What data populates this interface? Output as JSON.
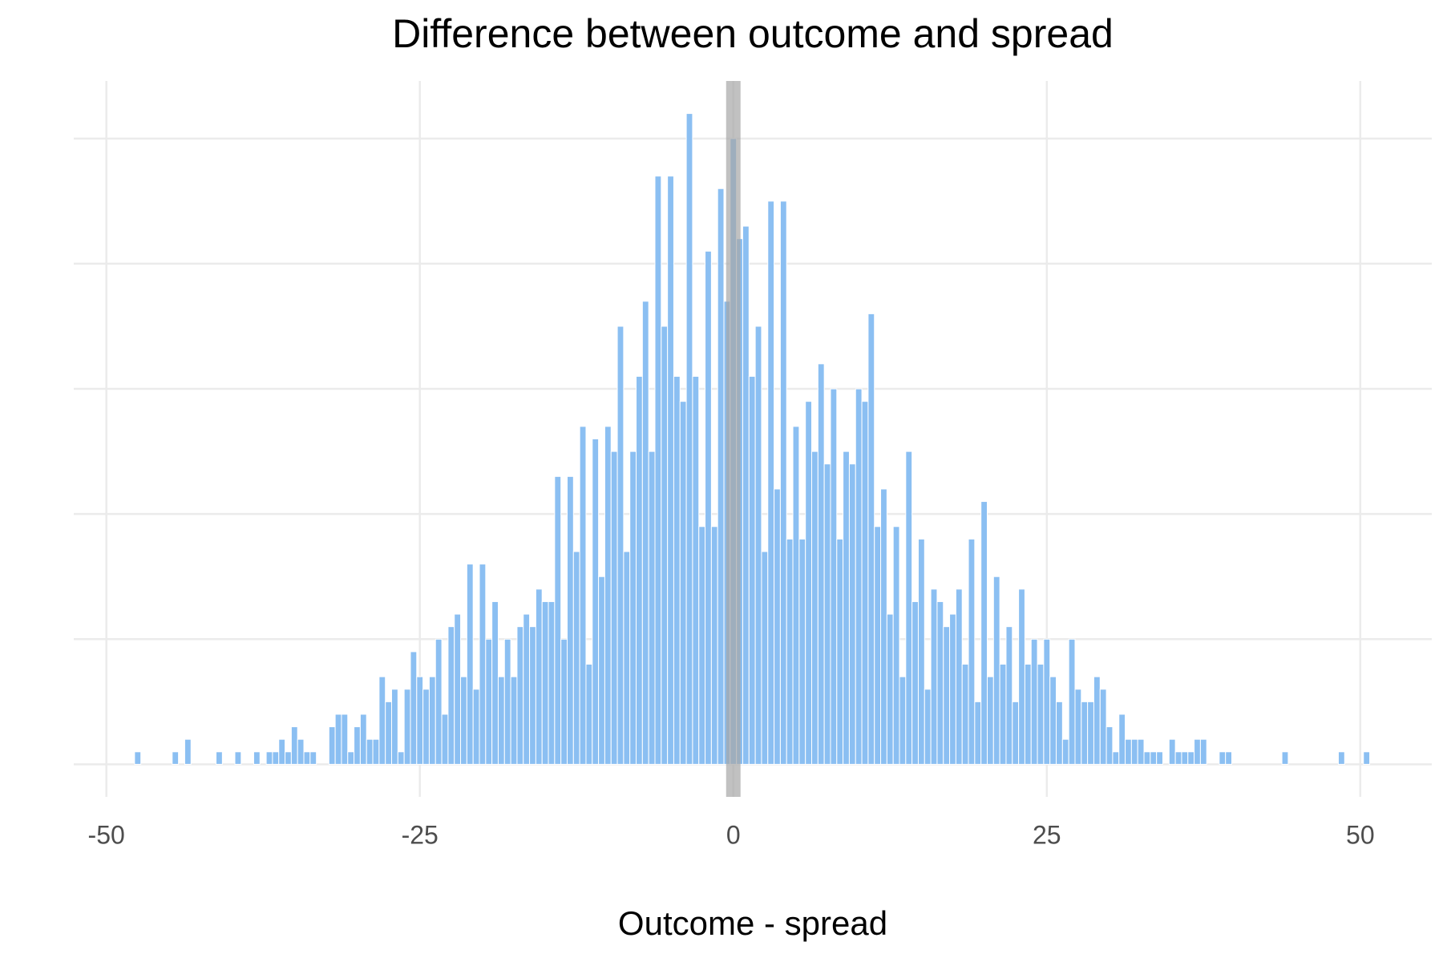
{
  "chart_data": {
    "type": "histogram",
    "title": "Difference between outcome and spread",
    "x_label": "Outcome - spread",
    "bins": [
      -47.75,
      -47.25,
      -46.75,
      -46.25,
      -45.75,
      -45.25,
      -44.75,
      -44.25,
      -43.75,
      -43.25,
      -42.75,
      -42.25,
      -41.75,
      -41.25,
      -40.75,
      -40.25,
      -39.75,
      -39.25,
      -38.75,
      -38.25,
      -37.75,
      -37.25,
      -36.75,
      -36.25,
      -35.75,
      -35.25,
      -34.75,
      -34.25,
      -33.75,
      -33.25,
      -32.75,
      -32.25,
      -31.75,
      -31.25,
      -30.75,
      -30.25,
      -29.75,
      -29.25,
      -28.75,
      -28.25,
      -27.75,
      -27.25,
      -26.75,
      -26.25,
      -25.75,
      -25.25,
      -24.75,
      -24.25,
      -23.75,
      -23.25,
      -22.75,
      -22.25,
      -21.75,
      -21.25,
      -20.75,
      -20.25,
      -19.75,
      -19.25,
      -18.75,
      -18.25,
      -17.75,
      -17.25,
      -16.75,
      -16.25,
      -15.75,
      -15.25,
      -14.75,
      -14.25,
      -13.75,
      -13.25,
      -12.75,
      -12.25,
      -11.75,
      -11.25,
      -10.75,
      -10.25,
      -9.75,
      -9.25,
      -8.75,
      -8.25,
      -7.75,
      -7.25,
      -6.75,
      -6.25,
      -5.75,
      -5.25,
      -4.75,
      -4.25,
      -3.75,
      -3.25,
      -2.75,
      -2.25,
      -1.75,
      -1.25,
      -0.75,
      -0.25,
      0.25,
      0.75,
      1.25,
      1.75,
      2.25,
      2.75,
      3.25,
      3.75,
      4.25,
      4.75,
      5.25,
      5.75,
      6.25,
      6.75,
      7.25,
      7.75,
      8.25,
      8.75,
      9.25,
      9.75,
      10.25,
      10.75,
      11.25,
      11.75,
      12.25,
      12.75,
      13.25,
      13.75,
      14.25,
      14.75,
      15.25,
      15.75,
      16.25,
      16.75,
      17.25,
      17.75,
      18.25,
      18.75,
      19.25,
      19.75,
      20.25,
      20.75,
      21.25,
      21.75,
      22.25,
      22.75,
      23.25,
      23.75,
      24.25,
      24.75,
      25.25,
      25.75,
      26.25,
      26.75,
      27.25,
      27.75,
      28.25,
      28.75,
      29.25,
      29.75,
      30.25,
      30.75,
      31.25,
      31.75,
      32.25,
      32.75,
      33.25,
      33.75,
      34.25,
      34.75,
      35.25,
      35.75,
      36.25,
      36.75,
      37.25,
      37.75,
      38.25,
      38.75,
      39.25,
      39.75,
      40.25,
      40.75,
      41.25,
      41.75,
      42.25,
      42.75,
      43.25,
      43.75,
      44.25,
      44.75,
      45.25,
      45.75,
      46.25,
      46.75,
      47.25,
      47.75,
      48.25,
      48.75,
      49.25,
      49.75,
      50.25,
      50.75
    ],
    "values": [
      1,
      0,
      0,
      0,
      0,
      0,
      1,
      0,
      2,
      0,
      0,
      0,
      0,
      1,
      0,
      0,
      1,
      0,
      0,
      1,
      0,
      1,
      1,
      2,
      1,
      3,
      2,
      1,
      1,
      0,
      0,
      3,
      4,
      4,
      1,
      3,
      4,
      2,
      2,
      7,
      5,
      6,
      1,
      6,
      9,
      7,
      6,
      7,
      10,
      4,
      11,
      12,
      7,
      16,
      6,
      16,
      10,
      13,
      7,
      10,
      7,
      11,
      12,
      11,
      14,
      13,
      13,
      23,
      10,
      23,
      17,
      27,
      8,
      26,
      15,
      27,
      25,
      35,
      17,
      25,
      31,
      37,
      25,
      47,
      35,
      47,
      31,
      29,
      52,
      31,
      19,
      41,
      19,
      46,
      37,
      50,
      42,
      43,
      31,
      35,
      17,
      45,
      22,
      45,
      18,
      27,
      18,
      29,
      25,
      32,
      24,
      30,
      18,
      25,
      24,
      30,
      29,
      36,
      19,
      22,
      12,
      19,
      7,
      25,
      13,
      18,
      6,
      14,
      13,
      11,
      12,
      14,
      8,
      18,
      5,
      21,
      7,
      15,
      8,
      11,
      5,
      14,
      8,
      10,
      8,
      10,
      7,
      5,
      2,
      10,
      6,
      5,
      5,
      7,
      6,
      3,
      1,
      4,
      2,
      2,
      2,
      1,
      1,
      1,
      0,
      2,
      1,
      1,
      1,
      2,
      2,
      0,
      0,
      1,
      1,
      0,
      0,
      0,
      0,
      0,
      0,
      0,
      0,
      1,
      0,
      0,
      0,
      0,
      0,
      0,
      0,
      0,
      1,
      0,
      0,
      0,
      1
    ],
    "color": "#8bbff2",
    "vline": 0,
    "vline_color": "#a6a6a6",
    "xlim": [
      -52.6,
      55.7
    ],
    "xticks": [
      -50,
      -25,
      0,
      25,
      50
    ],
    "ylim": [
      -2.6,
      54.6
    ],
    "yticks": [
      0,
      10,
      20,
      30,
      40,
      50
    ],
    "grid": true
  }
}
